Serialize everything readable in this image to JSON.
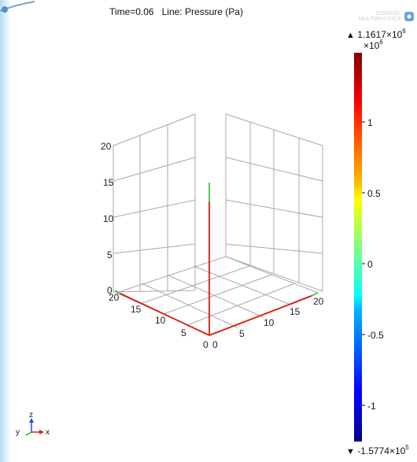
{
  "title": "Time=0.06   Line: Pressure (Pa)",
  "logo_text": [
    "COMSOL",
    "MULTIPHYSICS"
  ],
  "axes": {
    "z_ticks": [
      "20",
      "15",
      "10",
      "5",
      "0"
    ],
    "left_ticks": [
      "20",
      "15",
      "10",
      "5",
      "0"
    ],
    "right_ticks": [
      "0",
      "5",
      "10",
      "15",
      "20"
    ],
    "ranges": {
      "x": [
        0,
        20
      ],
      "y": [
        0,
        20
      ],
      "z": [
        0,
        20
      ]
    },
    "grid": true
  },
  "colorbar": {
    "max_arrow": "▲",
    "max_mantissa": "1.1617",
    "max_base": "×10",
    "max_exp": "6",
    "scale_base": "×10",
    "scale_exp": "6",
    "ticks": [
      "1",
      "0.5",
      "0",
      "-0.5",
      "-1"
    ],
    "tick_values": [
      1,
      0.5,
      0,
      -0.5,
      -1
    ],
    "min_arrow": "▼",
    "min_mantissa": "-1.5774",
    "min_base": "×10",
    "min_exp": "5",
    "data_min": -0.15774,
    "data_max": 1.1617
  },
  "triad": {
    "y": "y",
    "z": "z",
    "x": "x"
  },
  "colors": {
    "line_red": "#dd1a10",
    "line_green": "#3ccb3c",
    "grid": "#a8a8a8"
  }
}
